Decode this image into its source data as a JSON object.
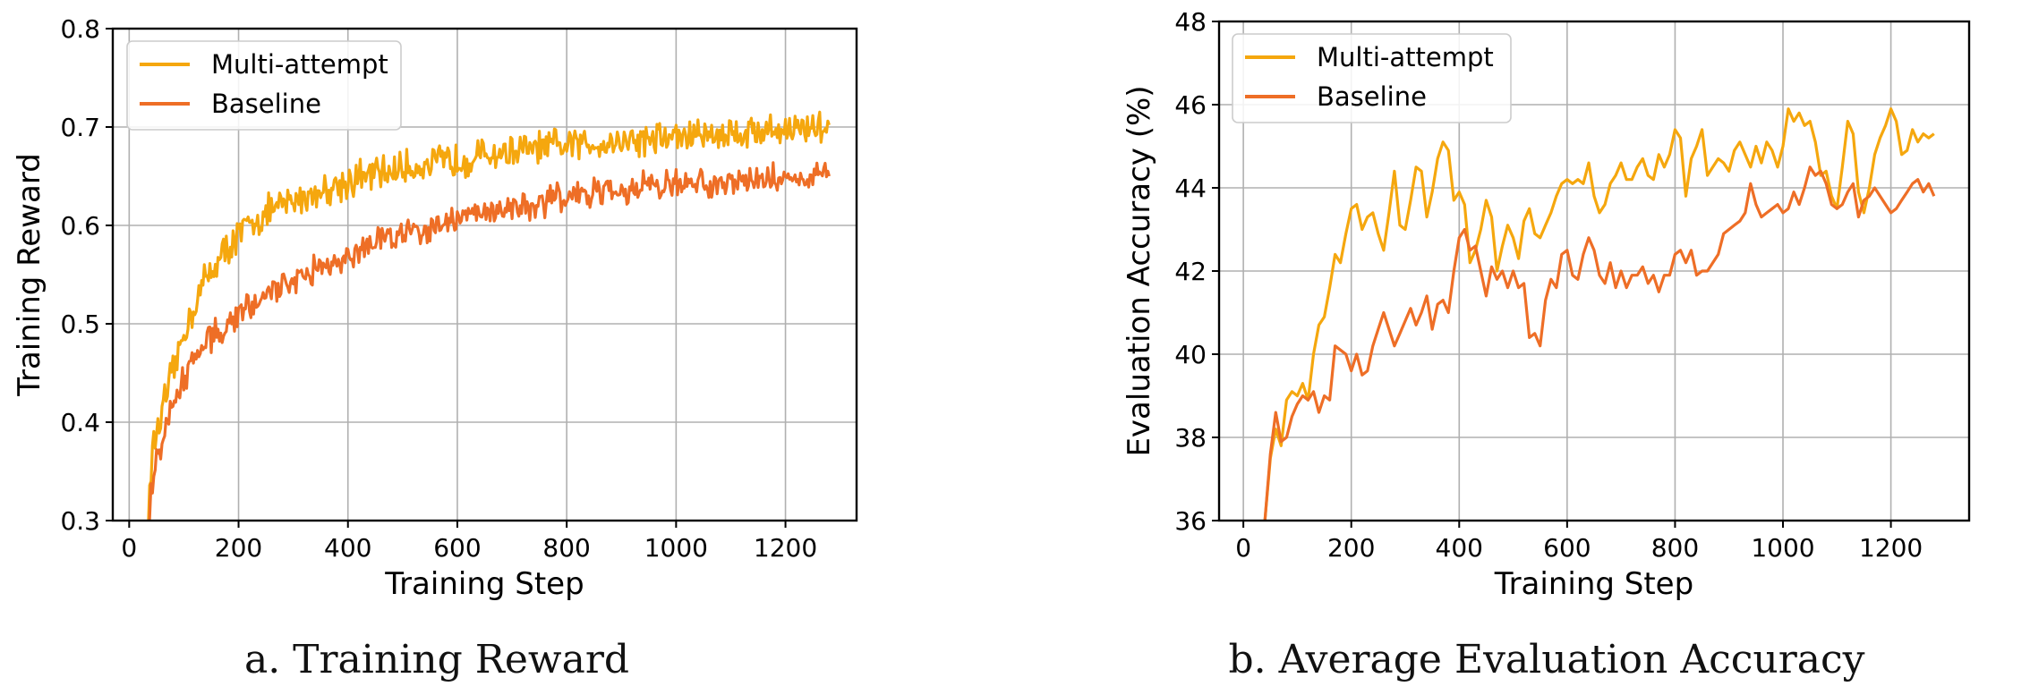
{
  "colors": {
    "multi_attempt": "#F5A70E",
    "baseline": "#EE6E26",
    "grid": "#b0b0b0"
  },
  "captions": {
    "a": "a. Training Reward",
    "b": "b. Average Evaluation Accuracy"
  },
  "chart_data": [
    {
      "type": "line",
      "id": "training-reward",
      "xlabel": "Training Step",
      "ylabel": "Training Reward",
      "xlim": [
        -30,
        1330
      ],
      "ylim": [
        0.3,
        0.8
      ],
      "xticks": [
        0,
        200,
        400,
        600,
        800,
        1000,
        1200
      ],
      "yticks": [
        0.3,
        0.4,
        0.5,
        0.6,
        0.7,
        0.8
      ],
      "ytick_labels": [
        "0.3",
        "0.4",
        "0.5",
        "0.6",
        "0.7",
        "0.8"
      ],
      "grid": true,
      "legend_position": "top-left",
      "series": [
        {
          "name": "Multi-attempt",
          "color_key": "multi_attempt",
          "x": [
            35,
            40,
            50,
            60,
            70,
            80,
            90,
            100,
            110,
            120,
            130,
            140,
            150,
            170,
            200,
            230,
            260,
            300,
            350,
            400,
            450,
            500,
            550,
            600,
            650,
            700,
            750,
            800,
            850,
            900,
            950,
            1000,
            1050,
            1100,
            1150,
            1200,
            1250,
            1280
          ],
          "y": [
            0.3,
            0.36,
            0.39,
            0.41,
            0.43,
            0.45,
            0.47,
            0.49,
            0.505,
            0.52,
            0.535,
            0.545,
            0.555,
            0.57,
            0.59,
            0.605,
            0.615,
            0.625,
            0.635,
            0.645,
            0.652,
            0.658,
            0.662,
            0.667,
            0.671,
            0.675,
            0.678,
            0.681,
            0.684,
            0.686,
            0.688,
            0.69,
            0.692,
            0.694,
            0.696,
            0.698,
            0.7,
            0.702
          ],
          "noise": 0.014
        },
        {
          "name": "Baseline",
          "color_key": "baseline",
          "x": [
            35,
            40,
            50,
            60,
            70,
            80,
            90,
            100,
            110,
            120,
            140,
            160,
            180,
            200,
            250,
            300,
            350,
            400,
            450,
            500,
            550,
            600,
            650,
            700,
            750,
            800,
            850,
            900,
            950,
            1000,
            1050,
            1100,
            1150,
            1200,
            1250,
            1280
          ],
          "y": [
            0.3,
            0.33,
            0.36,
            0.38,
            0.4,
            0.415,
            0.43,
            0.445,
            0.455,
            0.465,
            0.48,
            0.492,
            0.502,
            0.51,
            0.528,
            0.545,
            0.558,
            0.57,
            0.582,
            0.592,
            0.6,
            0.607,
            0.613,
            0.619,
            0.624,
            0.628,
            0.632,
            0.636,
            0.639,
            0.641,
            0.643,
            0.645,
            0.647,
            0.648,
            0.649,
            0.65
          ],
          "noise": 0.012
        }
      ]
    },
    {
      "type": "line",
      "id": "evaluation-accuracy",
      "xlabel": "Training Step",
      "ylabel": "Evaluation Accuracy (%)",
      "xlim": [
        -45,
        1345
      ],
      "ylim": [
        36,
        48
      ],
      "xticks": [
        0,
        200,
        400,
        600,
        800,
        1000,
        1200
      ],
      "yticks": [
        36,
        38,
        40,
        42,
        44,
        46,
        48
      ],
      "ytick_labels": [
        "36",
        "38",
        "40",
        "42",
        "44",
        "46",
        "48"
      ],
      "grid": true,
      "legend_position": "top-left",
      "series": [
        {
          "name": "Multi-attempt",
          "color_key": "multi_attempt",
          "x": [
            40,
            50,
            60,
            70,
            80,
            90,
            100,
            110,
            120,
            130,
            140,
            150,
            160,
            170,
            180,
            190,
            200,
            210,
            220,
            230,
            240,
            250,
            260,
            270,
            280,
            290,
            300,
            310,
            320,
            330,
            340,
            350,
            360,
            370,
            380,
            390,
            400,
            410,
            420,
            430,
            440,
            450,
            460,
            470,
            480,
            490,
            500,
            510,
            520,
            530,
            540,
            550,
            560,
            570,
            580,
            590,
            600,
            610,
            620,
            630,
            640,
            650,
            660,
            670,
            680,
            690,
            700,
            710,
            720,
            730,
            740,
            750,
            760,
            770,
            780,
            790,
            800,
            810,
            820,
            830,
            840,
            850,
            860,
            870,
            880,
            890,
            900,
            910,
            920,
            930,
            940,
            950,
            960,
            970,
            980,
            990,
            1000,
            1010,
            1020,
            1030,
            1040,
            1050,
            1060,
            1070,
            1080,
            1090,
            1100,
            1110,
            1120,
            1130,
            1140,
            1150,
            1160,
            1170,
            1180,
            1190,
            1200,
            1210,
            1220,
            1230,
            1240,
            1250,
            1260,
            1270,
            1280
          ],
          "y": [
            36.0,
            37.5,
            38.2,
            37.8,
            38.9,
            39.1,
            39.0,
            39.3,
            38.9,
            40.0,
            40.7,
            40.9,
            41.6,
            42.4,
            42.2,
            42.9,
            43.5,
            43.6,
            43.0,
            43.3,
            43.4,
            42.9,
            42.5,
            43.4,
            44.4,
            43.1,
            43.0,
            43.7,
            44.5,
            44.4,
            43.3,
            43.9,
            44.7,
            45.1,
            44.9,
            43.7,
            43.9,
            43.6,
            42.2,
            42.5,
            43.0,
            43.7,
            43.3,
            42.0,
            42.6,
            43.1,
            42.8,
            42.3,
            43.2,
            43.5,
            42.9,
            42.8,
            43.1,
            43.4,
            43.8,
            44.1,
            44.2,
            44.1,
            44.2,
            44.1,
            44.6,
            43.8,
            43.4,
            43.6,
            44.1,
            44.3,
            44.6,
            44.2,
            44.2,
            44.5,
            44.7,
            44.3,
            44.2,
            44.8,
            44.5,
            44.8,
            45.4,
            45.2,
            43.8,
            44.7,
            45.0,
            45.4,
            44.3,
            44.5,
            44.7,
            44.6,
            44.4,
            44.9,
            45.1,
            44.8,
            44.5,
            45.0,
            44.6,
            45.1,
            44.9,
            44.5,
            45.0,
            45.9,
            45.6,
            45.8,
            45.5,
            45.6,
            45.1,
            44.3,
            44.4,
            43.8,
            43.5,
            44.5,
            45.6,
            45.3,
            43.9,
            43.4,
            44.0,
            44.8,
            45.2,
            45.5,
            45.9,
            45.6,
            44.8,
            44.9,
            45.4,
            45.1,
            45.3,
            45.2,
            45.3
          ],
          "noise": 0
        },
        {
          "name": "Baseline",
          "color_key": "baseline",
          "x": [
            40,
            50,
            60,
            70,
            80,
            90,
            100,
            110,
            120,
            130,
            140,
            150,
            160,
            170,
            180,
            190,
            200,
            210,
            220,
            230,
            240,
            250,
            260,
            270,
            280,
            290,
            300,
            310,
            320,
            330,
            340,
            350,
            360,
            370,
            380,
            390,
            400,
            410,
            420,
            430,
            440,
            450,
            460,
            470,
            480,
            490,
            500,
            510,
            520,
            530,
            540,
            550,
            560,
            570,
            580,
            590,
            600,
            610,
            620,
            630,
            640,
            650,
            660,
            670,
            680,
            690,
            700,
            710,
            720,
            730,
            740,
            750,
            760,
            770,
            780,
            790,
            800,
            810,
            820,
            830,
            840,
            850,
            860,
            870,
            880,
            890,
            900,
            910,
            920,
            930,
            940,
            950,
            960,
            970,
            980,
            990,
            1000,
            1010,
            1020,
            1030,
            1040,
            1050,
            1060,
            1070,
            1080,
            1090,
            1100,
            1110,
            1120,
            1130,
            1140,
            1150,
            1160,
            1170,
            1180,
            1190,
            1200,
            1210,
            1220,
            1230,
            1240,
            1250,
            1260,
            1270,
            1280
          ],
          "y": [
            36.0,
            37.6,
            38.6,
            37.9,
            38.0,
            38.5,
            38.8,
            39.0,
            38.9,
            39.1,
            38.6,
            39.0,
            38.9,
            40.2,
            40.1,
            40.0,
            39.6,
            40.0,
            39.5,
            39.6,
            40.2,
            40.6,
            41.0,
            40.6,
            40.2,
            40.5,
            40.8,
            41.1,
            40.7,
            41.0,
            41.4,
            40.6,
            41.2,
            41.3,
            41.0,
            42.0,
            42.8,
            43.0,
            42.5,
            42.6,
            42.0,
            41.4,
            42.1,
            41.8,
            42.0,
            41.6,
            42.0,
            41.6,
            41.7,
            40.4,
            40.5,
            40.2,
            41.3,
            41.8,
            41.6,
            42.4,
            42.5,
            41.9,
            41.8,
            42.4,
            42.8,
            42.5,
            41.9,
            41.7,
            42.2,
            41.6,
            42.0,
            41.6,
            41.9,
            41.9,
            42.1,
            41.7,
            41.9,
            41.5,
            41.9,
            41.9,
            42.4,
            42.5,
            42.2,
            42.5,
            41.9,
            42.0,
            42.0,
            42.2,
            42.4,
            42.9,
            43.0,
            43.1,
            43.2,
            43.4,
            44.1,
            43.6,
            43.3,
            43.4,
            43.5,
            43.6,
            43.4,
            43.5,
            43.9,
            43.6,
            44.0,
            44.5,
            44.3,
            44.4,
            44.1,
            43.6,
            43.5,
            43.6,
            43.9,
            44.1,
            43.3,
            43.7,
            43.8,
            44.0,
            43.8,
            43.6,
            43.4,
            43.5,
            43.7,
            43.9,
            44.1,
            44.2,
            43.9,
            44.1,
            43.8
          ],
          "noise": 0
        }
      ]
    }
  ]
}
